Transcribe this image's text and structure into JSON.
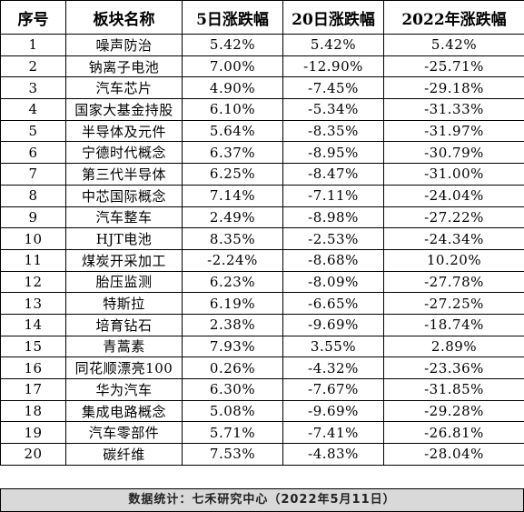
{
  "table": {
    "headers": [
      "序号",
      "板块名称",
      "5日涨跌幅",
      "20日涨跌幅",
      "2022年涨跌幅"
    ],
    "rows": [
      [
        "1",
        "噪声防治",
        "5.42%",
        "5.42%",
        "5.42%"
      ],
      [
        "2",
        "钠离子电池",
        "7.00%",
        "-12.90%",
        "-25.71%"
      ],
      [
        "3",
        "汽车芯片",
        "4.90%",
        "-7.45%",
        "-29.18%"
      ],
      [
        "4",
        "国家大基金持股",
        "6.10%",
        "-5.34%",
        "-31.33%"
      ],
      [
        "5",
        "半导体及元件",
        "5.64%",
        "-8.35%",
        "-31.97%"
      ],
      [
        "6",
        "宁德时代概念",
        "6.37%",
        "-8.95%",
        "-30.79%"
      ],
      [
        "7",
        "第三代半导体",
        "6.25%",
        "-8.47%",
        "-31.00%"
      ],
      [
        "8",
        "中芯国际概念",
        "7.14%",
        "-7.11%",
        "-24.04%"
      ],
      [
        "9",
        "汽车整车",
        "2.49%",
        "-8.98%",
        "-27.22%"
      ],
      [
        "10",
        "HJT电池",
        "8.35%",
        "-2.53%",
        "-24.34%"
      ],
      [
        "11",
        "煤炭开采加工",
        "-2.24%",
        "-8.68%",
        "10.20%"
      ],
      [
        "12",
        "胎压监测",
        "6.23%",
        "-8.09%",
        "-27.78%"
      ],
      [
        "13",
        "特斯拉",
        "6.19%",
        "-6.65%",
        "-27.25%"
      ],
      [
        "14",
        "培育钻石",
        "2.38%",
        "-9.69%",
        "-18.74%"
      ],
      [
        "15",
        "青蒿素",
        "7.93%",
        "3.55%",
        "2.89%"
      ],
      [
        "16",
        "同花顺漂亮100",
        "0.26%",
        "-4.32%",
        "-23.36%"
      ],
      [
        "17",
        "华为汽车",
        "6.30%",
        "-7.67%",
        "-31.85%"
      ],
      [
        "18",
        "集成电路概念",
        "5.08%",
        "-9.69%",
        "-29.28%"
      ],
      [
        "19",
        "汽车零部件",
        "5.71%",
        "-7.41%",
        "-26.81%"
      ],
      [
        "20",
        "碳纤维",
        "7.53%",
        "-4.83%",
        "-28.04%"
      ]
    ]
  },
  "footer": {
    "source": "数据统计：七禾研究中心（2022年5月11日）"
  }
}
